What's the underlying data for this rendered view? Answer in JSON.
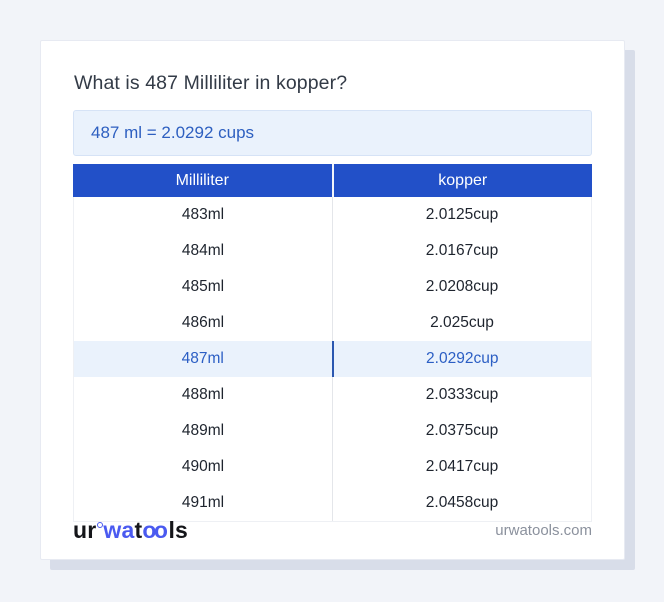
{
  "page": {
    "title": "What is 487 Milliliter in kopper?",
    "answer": "487 ml = 2.0292 cups"
  },
  "table": {
    "headers": [
      "Milliliter",
      "kopper"
    ],
    "rows": [
      {
        "ml": "483ml",
        "cup": "2.0125cup",
        "highlight": false
      },
      {
        "ml": "484ml",
        "cup": "2.0167cup",
        "highlight": false
      },
      {
        "ml": "485ml",
        "cup": "2.0208cup",
        "highlight": false
      },
      {
        "ml": "486ml",
        "cup": "2.025cup",
        "highlight": false
      },
      {
        "ml": "487ml",
        "cup": "2.0292cup",
        "highlight": true
      },
      {
        "ml": "488ml",
        "cup": "2.0333cup",
        "highlight": false
      },
      {
        "ml": "489ml",
        "cup": "2.0375cup",
        "highlight": false
      },
      {
        "ml": "490ml",
        "cup": "2.0417cup",
        "highlight": false
      },
      {
        "ml": "491ml",
        "cup": "2.0458cup",
        "highlight": false
      }
    ]
  },
  "footer": {
    "logo": {
      "part1": "ur",
      "part2": "wa",
      "part3": "t",
      "part4": "oo",
      "part5": "ls"
    },
    "site": "urwatools.com"
  },
  "colors": {
    "page_background": "#f2f4f9",
    "card_background": "#ffffff",
    "card_shadow": "#d8dde9",
    "header_blue": "#2250c8",
    "highlight_background": "#eaf2fc",
    "highlight_text": "#2b5ec4",
    "answer_text": "#2d5fc0",
    "logo_blue": "#4a5af0",
    "title_text": "#333b47",
    "row_text": "#1e242e",
    "site_text": "#8b919d"
  }
}
